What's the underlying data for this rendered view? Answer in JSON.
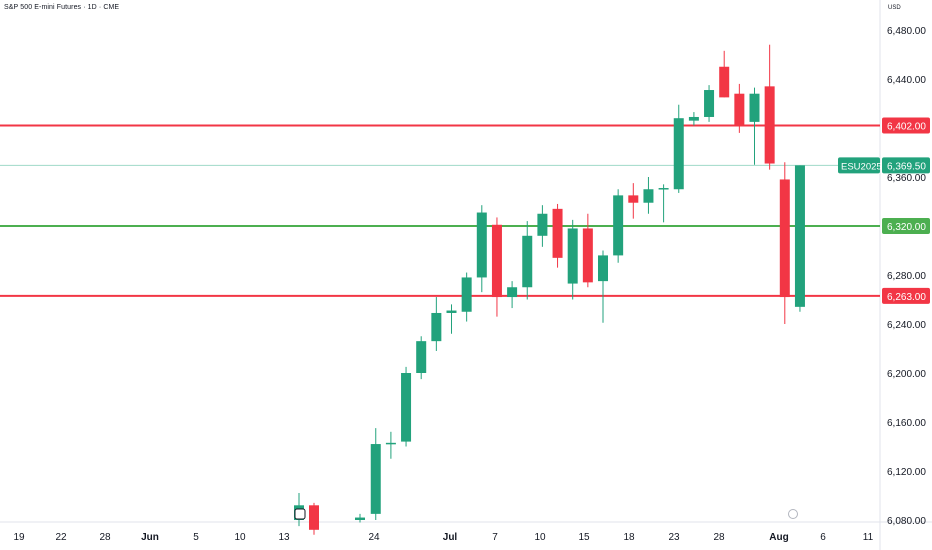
{
  "header": {
    "title": "S&P 500 E-mini Futures · 1D · CME",
    "currency": "USD"
  },
  "colors": {
    "up": "#22a27c",
    "down": "#f23645",
    "red_line": "#f23645",
    "green_line": "#4caf50",
    "current_line": "#9fd9c8",
    "axis_text": "#131722",
    "grid": "#f0f3fa"
  },
  "chart_data": {
    "type": "candlestick",
    "symbol": "ESU2025",
    "y_ticks": [
      6480,
      6440,
      6400,
      6360,
      6320,
      6280,
      6240,
      6200,
      6160,
      6120,
      6080
    ],
    "y_tick_labels": [
      "6,480.00",
      "6,440.00",
      "6,400.00",
      "6,360.00",
      "6,320.00",
      "6,280.00",
      "6,240.00",
      "6,200.00",
      "6,160.00",
      "6,120.00",
      "6,080.00"
    ],
    "x_tick_labels": [
      "19",
      "22",
      "28",
      "Jun",
      "5",
      "10",
      "13",
      "24",
      "Jul",
      "7",
      "10",
      "15",
      "18",
      "23",
      "28",
      "Aug",
      "6",
      "11"
    ],
    "horizontal_lines": [
      {
        "price": 6402.0,
        "label": "6,402.00",
        "color": "#f23645"
      },
      {
        "price": 6320.0,
        "label": "6,320.00",
        "color": "#4caf50"
      },
      {
        "price": 6263.0,
        "label": "6,263.00",
        "color": "#f23645"
      }
    ],
    "current_price": {
      "symbol": "ESU2025",
      "price": 6369.5,
      "label": "6,369.50"
    },
    "candles": [
      {
        "o": 6080,
        "h": 6102,
        "l": 6075,
        "c": 6092
      },
      {
        "o": 6092,
        "h": 6094,
        "l": 6068,
        "c": 6072
      },
      {
        "o": 6080,
        "h": 6085,
        "l": 6078,
        "c": 6082
      },
      {
        "o": 6085,
        "h": 6155,
        "l": 6080,
        "c": 6142
      },
      {
        "o": 6142,
        "h": 6152,
        "l": 6130,
        "c": 6143
      },
      {
        "o": 6144,
        "h": 6205,
        "l": 6140,
        "c": 6200
      },
      {
        "o": 6200,
        "h": 6230,
        "l": 6195,
        "c": 6226
      },
      {
        "o": 6226,
        "h": 6262,
        "l": 6218,
        "c": 6249
      },
      {
        "o": 6249,
        "h": 6256,
        "l": 6232,
        "c": 6251
      },
      {
        "o": 6250,
        "h": 6282,
        "l": 6242,
        "c": 6278
      },
      {
        "o": 6278,
        "h": 6337,
        "l": 6266,
        "c": 6331
      },
      {
        "o": 6321,
        "h": 6327,
        "l": 6246,
        "c": 6262
      },
      {
        "o": 6262,
        "h": 6275,
        "l": 6253,
        "c": 6270
      },
      {
        "o": 6270,
        "h": 6324,
        "l": 6260,
        "c": 6312
      },
      {
        "o": 6312,
        "h": 6337,
        "l": 6303,
        "c": 6330
      },
      {
        "o": 6334,
        "h": 6338,
        "l": 6286,
        "c": 6294
      },
      {
        "o": 6273,
        "h": 6325,
        "l": 6260,
        "c": 6318
      },
      {
        "o": 6318,
        "h": 6330,
        "l": 6270,
        "c": 6274
      },
      {
        "o": 6275,
        "h": 6300,
        "l": 6241,
        "c": 6296
      },
      {
        "o": 6296,
        "h": 6350,
        "l": 6290,
        "c": 6345
      },
      {
        "o": 6345,
        "h": 6355,
        "l": 6326,
        "c": 6339
      },
      {
        "o": 6339,
        "h": 6360,
        "l": 6330,
        "c": 6350
      },
      {
        "o": 6350,
        "h": 6354,
        "l": 6323,
        "c": 6351
      },
      {
        "o": 6350,
        "h": 6419,
        "l": 6347,
        "c": 6408
      },
      {
        "o": 6406,
        "h": 6413,
        "l": 6402,
        "c": 6409
      },
      {
        "o": 6409,
        "h": 6435,
        "l": 6405,
        "c": 6431
      },
      {
        "o": 6450,
        "h": 6463,
        "l": 6425,
        "c": 6425
      },
      {
        "o": 6428,
        "h": 6436,
        "l": 6396,
        "c": 6402
      },
      {
        "o": 6405,
        "h": 6433,
        "l": 6370,
        "c": 6428
      },
      {
        "o": 6434,
        "h": 6468,
        "l": 6366,
        "c": 6371
      },
      {
        "o": 6358,
        "h": 6372,
        "l": 6240,
        "c": 6262
      },
      {
        "o": 6254,
        "h": 6369.5,
        "l": 6250,
        "c": 6369.5
      }
    ]
  }
}
